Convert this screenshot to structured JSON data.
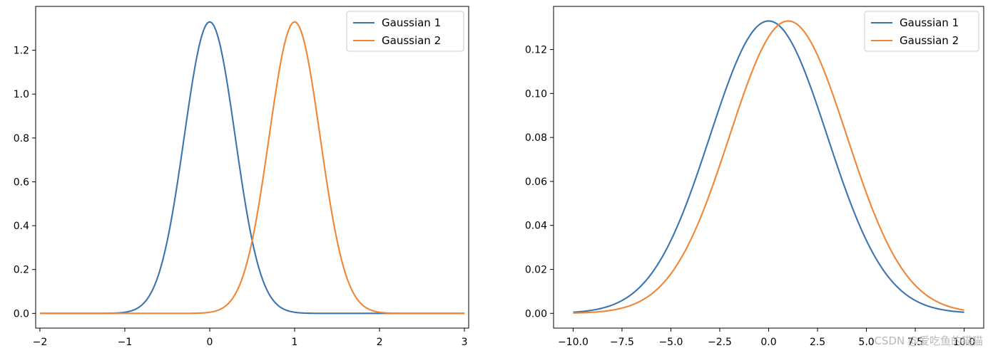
{
  "chart_data": [
    {
      "type": "line",
      "title": "",
      "xlabel": "",
      "ylabel": "",
      "xlim": [
        -2.05,
        3.05
      ],
      "ylim": [
        -0.067,
        1.4
      ],
      "x_ticks": [
        -2,
        -1,
        0,
        1,
        2,
        3
      ],
      "x_tick_labels": [
        "−2",
        "−1",
        "0",
        "1",
        "2",
        "3"
      ],
      "y_ticks": [
        0.0,
        0.2,
        0.4,
        0.6,
        0.8,
        1.0,
        1.2
      ],
      "y_tick_labels": [
        "0.0",
        "0.2",
        "0.4",
        "0.6",
        "0.8",
        "1.0",
        "1.2"
      ],
      "x_range": [
        -2,
        3
      ],
      "samples": 201,
      "grid": false,
      "legend_position": "top-right",
      "series": [
        {
          "name": "Gaussian 1",
          "mean": 0,
          "std": 0.3,
          "color": "#3b75af"
        },
        {
          "name": "Gaussian 2",
          "mean": 1,
          "std": 0.3,
          "color": "#ef8636"
        }
      ]
    },
    {
      "type": "line",
      "title": "",
      "xlabel": "",
      "ylabel": "",
      "xlim": [
        -11.0,
        11.0
      ],
      "ylim": [
        -0.0067,
        0.1396
      ],
      "x_ticks": [
        -10.0,
        -7.5,
        -5.0,
        -2.5,
        0.0,
        2.5,
        5.0,
        7.5,
        10.0
      ],
      "x_tick_labels": [
        "−10.0",
        "−7.5",
        "−5.0",
        "−2.5",
        "0.0",
        "2.5",
        "5.0",
        "7.5",
        "10.0"
      ],
      "y_ticks": [
        0.0,
        0.02,
        0.04,
        0.06,
        0.08,
        0.1,
        0.12
      ],
      "y_tick_labels": [
        "0.00",
        "0.02",
        "0.04",
        "0.06",
        "0.08",
        "0.10",
        "0.12"
      ],
      "x_range": [
        -10,
        10
      ],
      "samples": 201,
      "grid": false,
      "legend_position": "top-right",
      "series": [
        {
          "name": "Gaussian 1",
          "mean": 0,
          "std": 3,
          "color": "#3b75af"
        },
        {
          "name": "Gaussian 2",
          "mean": 1,
          "std": 3,
          "color": "#ef8636"
        }
      ]
    }
  ],
  "watermark": "CSDN @爱吃鱼的猫猫"
}
